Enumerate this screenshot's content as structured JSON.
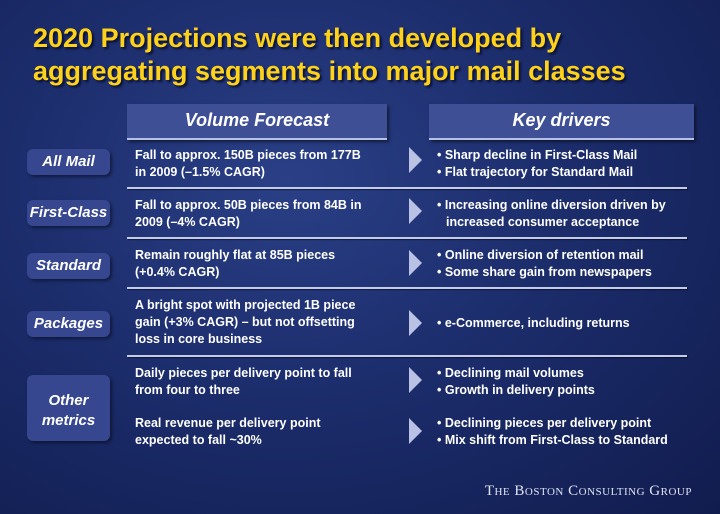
{
  "title": "2020 Projections were then developed by aggregating segments into major mail classes",
  "headers": {
    "volume": "Volume Forecast",
    "drivers": "Key drivers"
  },
  "rows": [
    {
      "segment": "All Mail",
      "volume": [
        "Fall to approx. 150B pieces from 177B",
        "in 2009 (–1.5% CAGR)"
      ],
      "drivers": [
        "• Sharp decline in First-Class Mail",
        "• Flat trajectory for Standard Mail"
      ]
    },
    {
      "segment": "First-Class",
      "volume": [
        "Fall to approx. 50B pieces from 84B in",
        "2009 (–4% CAGR)"
      ],
      "drivers": [
        "• Increasing online diversion driven by",
        "increased consumer acceptance"
      ]
    },
    {
      "segment": "Standard",
      "volume": [
        "Remain roughly flat at 85B pieces",
        "(+0.4% CAGR)"
      ],
      "drivers": [
        "• Online diversion of retention mail",
        "• Some share gain from newspapers"
      ]
    },
    {
      "segment": "Packages",
      "volume": [
        "A bright spot with projected 1B piece",
        "gain (+3% CAGR) – but not offsetting",
        "loss in core business"
      ],
      "drivers": [
        "• e-Commerce, including returns"
      ]
    },
    {
      "segment_lines": [
        "Other",
        "metrics"
      ],
      "volume_a": [
        "Daily pieces per delivery point to fall",
        "from four to three"
      ],
      "drivers_a": [
        "• Declining mail volumes",
        "• Growth in delivery points"
      ],
      "volume_b": [
        "Real revenue per delivery point",
        "expected to fall ~30%"
      ],
      "drivers_b": [
        "• Declining pieces per delivery point",
        "• Mix shift from First-Class to Standard"
      ]
    }
  ],
  "footer": "The Boston Consulting Group"
}
